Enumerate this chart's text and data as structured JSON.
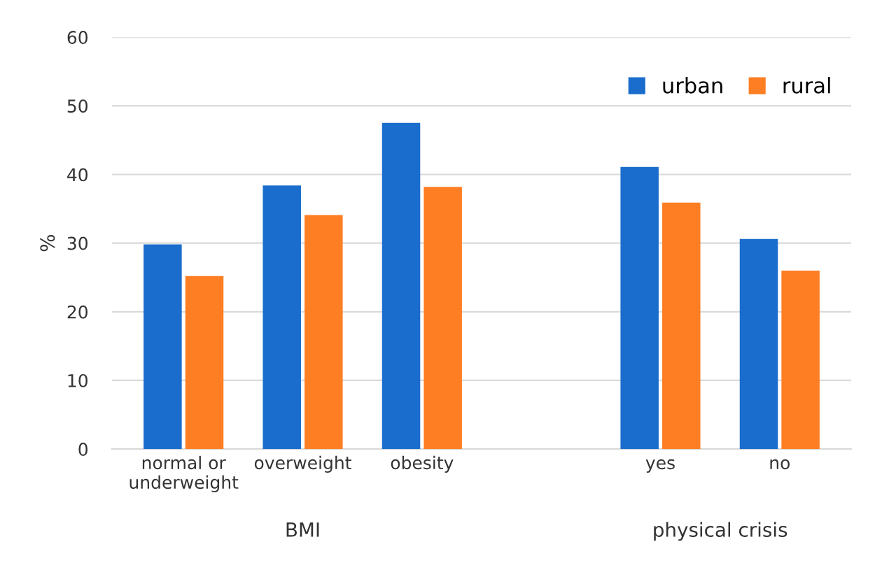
{
  "chart_data": {
    "type": "bar",
    "ylabel": "%",
    "categories": [
      "normal or\nunderweight",
      "overweight",
      "obesity",
      null,
      "yes",
      "no"
    ],
    "series": [
      {
        "name": "urban",
        "color": "#1a6dcc",
        "values": [
          29.8,
          38.4,
          47.5,
          null,
          41.1,
          30.6
        ]
      },
      {
        "name": "rural",
        "color": "#fd7e23",
        "values": [
          25.2,
          34.1,
          38.2,
          null,
          35.9,
          26.0
        ]
      }
    ],
    "ylim": [
      0,
      60
    ],
    "yticks": [
      0,
      10,
      20,
      30,
      40,
      50,
      60
    ],
    "grid": "y",
    "legend": "top right",
    "annotations": [
      "BMI",
      "physical crisis"
    ]
  }
}
